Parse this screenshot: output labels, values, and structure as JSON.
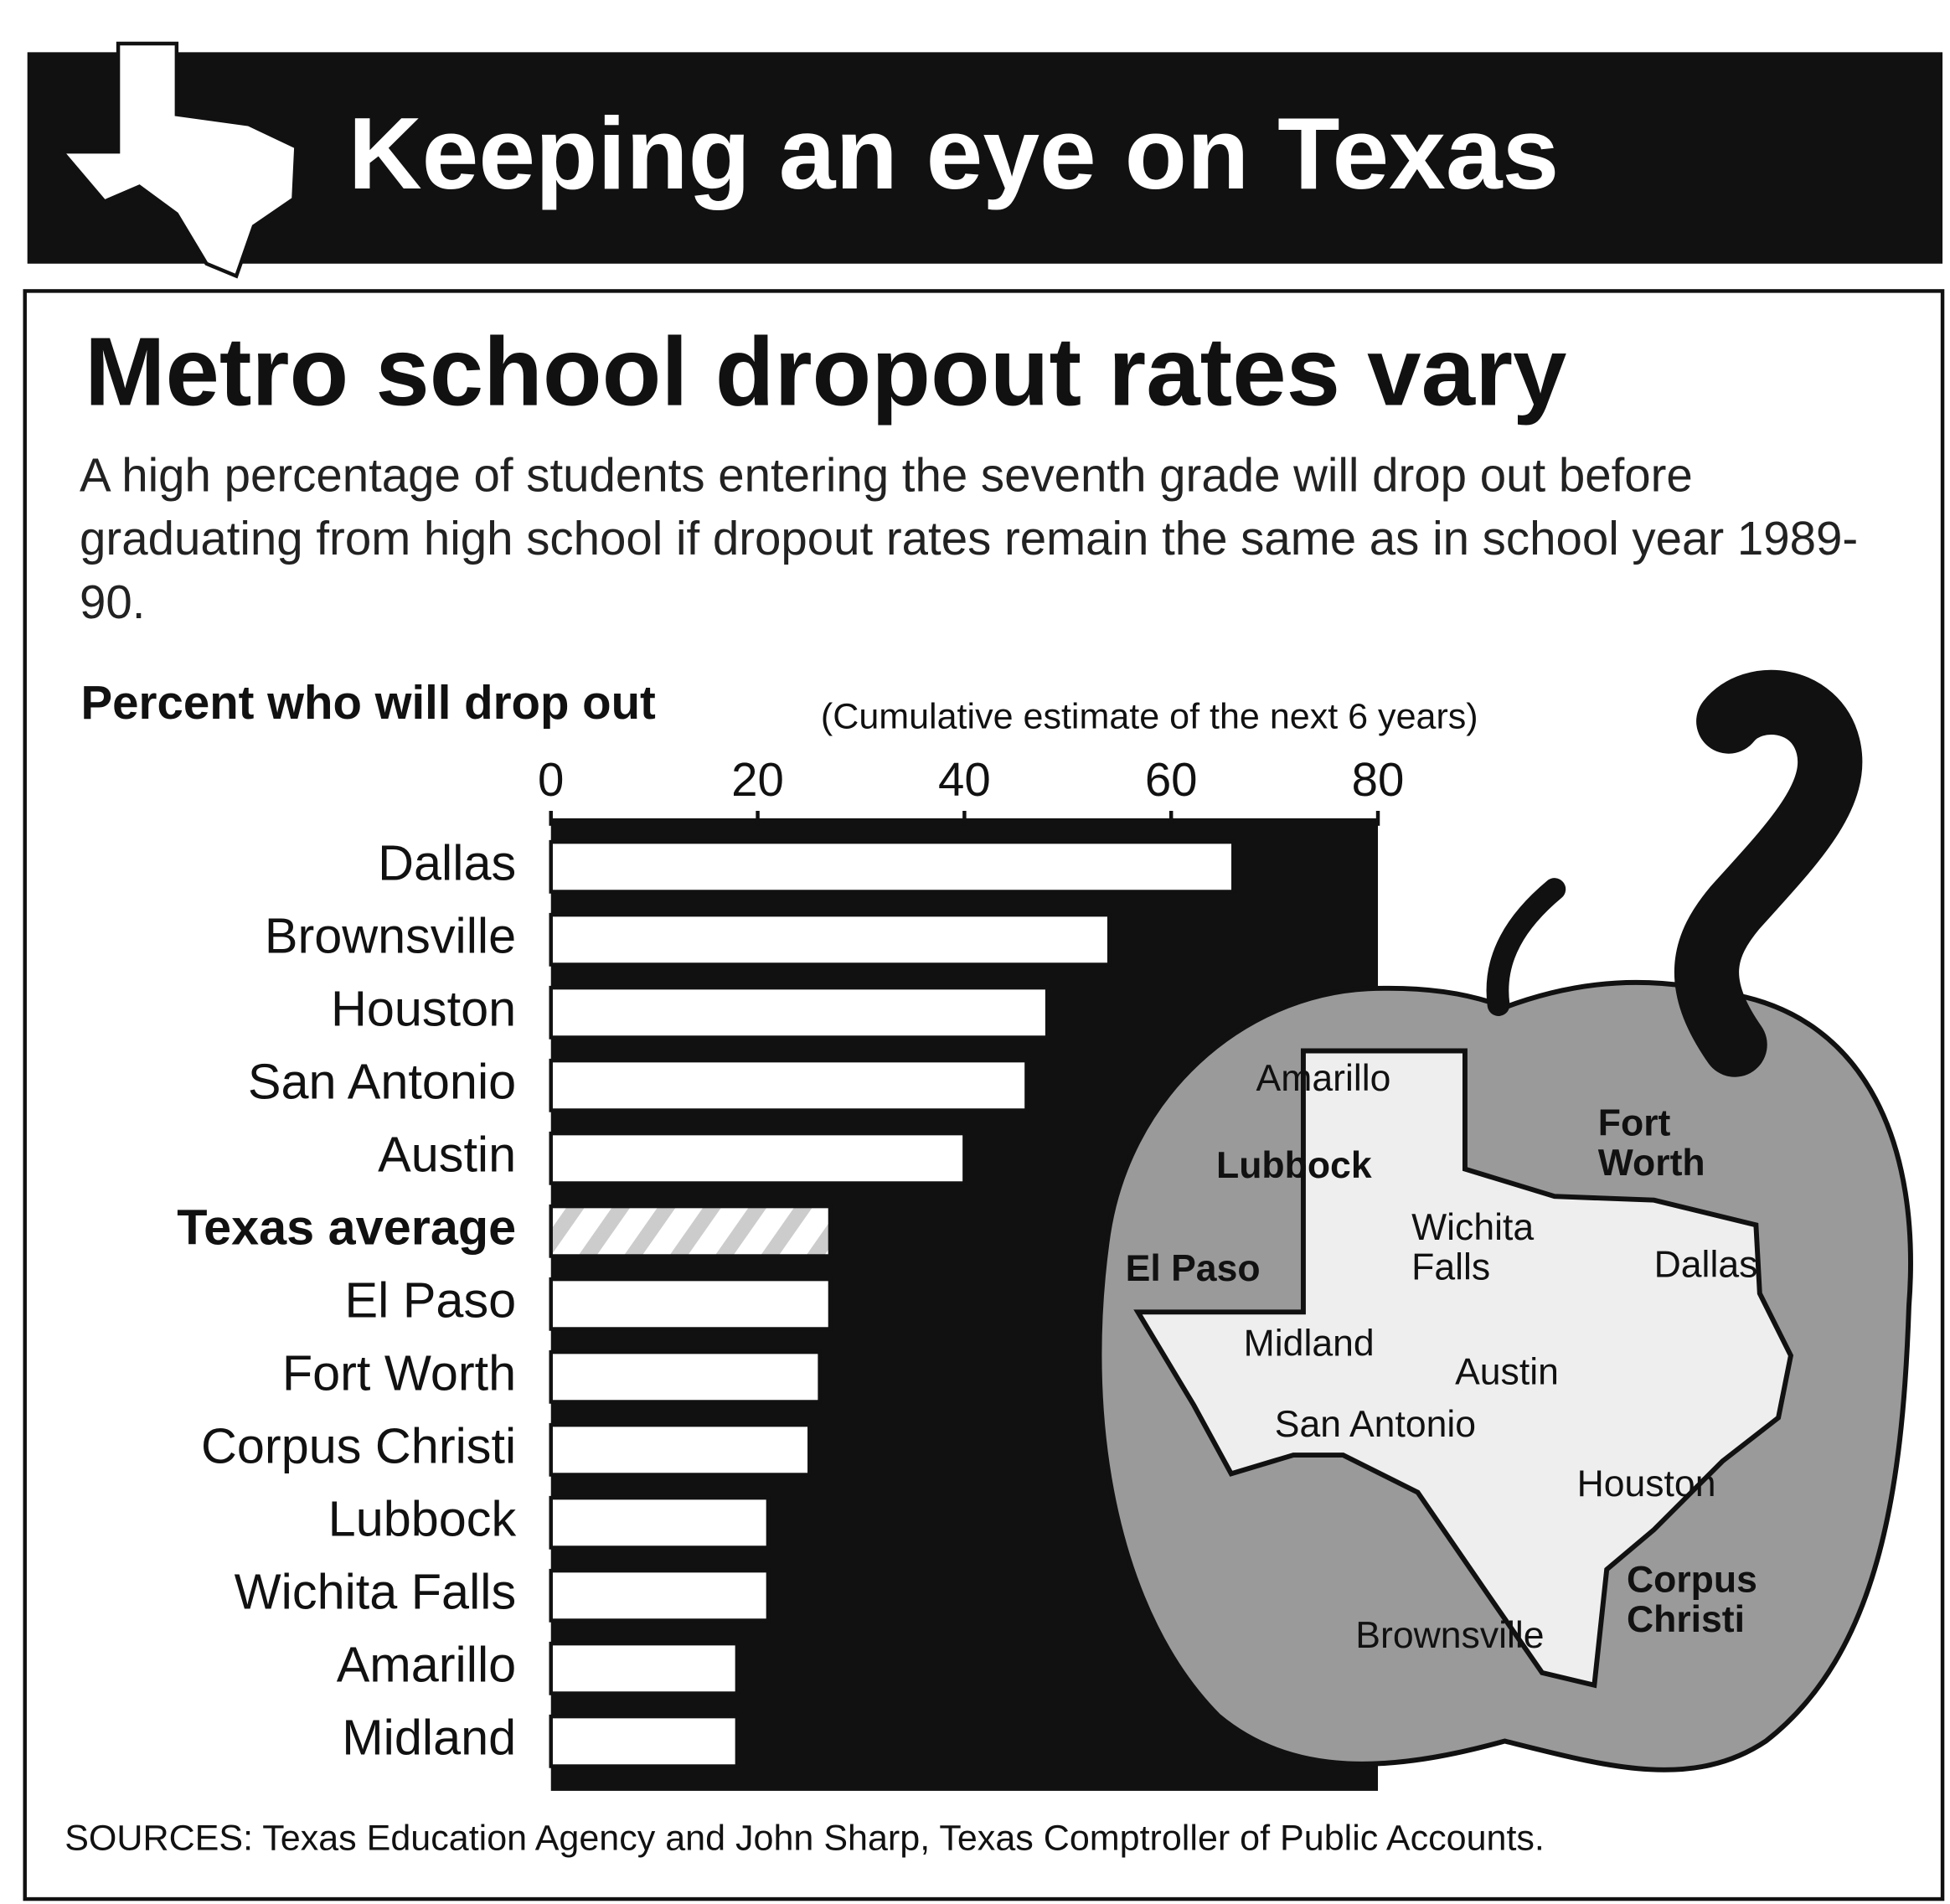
{
  "banner_title": "Keeping an eye on Texas",
  "chart_data": {
    "type": "barh",
    "title": "Metro school dropout rates vary",
    "subtitle": "A high percentage of students entering the seventh grade will drop out before graduating from high school if dropout rates remain the same as in school year 1989-90.",
    "xlabel": "Percent who will drop out",
    "xlabel_note": "(Cumulative estimate of the next 6 years)",
    "categories": [
      "Dallas",
      "Brownsville",
      "Houston",
      "San Antonio",
      "Austin",
      "Texas average",
      "El Paso",
      "Fort Worth",
      "Corpus Christi",
      "Lubbock",
      "Wichita Falls",
      "Amarillo",
      "Midland"
    ],
    "values": [
      66,
      54,
      48,
      46,
      40,
      27,
      27,
      26,
      25,
      21,
      21,
      18,
      18
    ],
    "highlight_index": 5,
    "color": "#ffffff",
    "xlim": [
      0,
      80
    ],
    "xticks": [
      0,
      20,
      40,
      60,
      80
    ],
    "map_labels": [
      "Amarillo",
      "Lubbock",
      "El Paso",
      "Wichita Falls",
      "Fort Worth",
      "Dallas",
      "Midland",
      "Austin",
      "San Antonio",
      "Houston",
      "Corpus Christi",
      "Brownsville"
    ],
    "source": "SOURCES: Texas Education Agency and John Sharp, Texas Comptroller of Public Accounts."
  }
}
